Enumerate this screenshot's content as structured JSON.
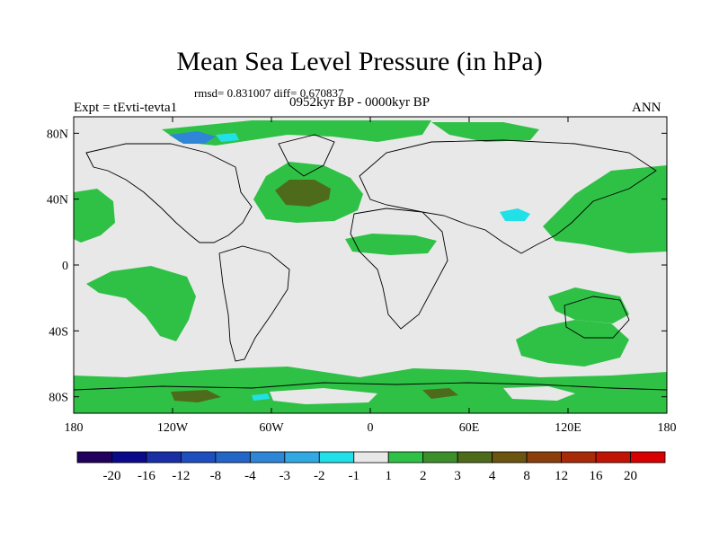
{
  "title": "Mean Sea Level Pressure (in hPa)",
  "stats": "rmsd= 0.831007 diff= 0.670837",
  "experiment": "Expt = tEvti-tevta1",
  "period": "0952kyr BP - 0000kyr BP",
  "season": "ANN",
  "x_ticks": [
    {
      "label": "180",
      "lon": -180
    },
    {
      "label": "120W",
      "lon": -120
    },
    {
      "label": "60W",
      "lon": -60
    },
    {
      "label": "0",
      "lon": 0
    },
    {
      "label": "60E",
      "lon": 60
    },
    {
      "label": "120E",
      "lon": 120
    },
    {
      "label": "180",
      "lon": 180
    }
  ],
  "y_ticks": [
    {
      "label": "80N",
      "lat": 80
    },
    {
      "label": "40N",
      "lat": 40
    },
    {
      "label": "0",
      "lat": 0
    },
    {
      "label": "40S",
      "lat": -40
    },
    {
      "label": "80S",
      "lat": -80
    }
  ],
  "colorbar": {
    "colors": [
      "#23005e",
      "#0a0a8a",
      "#1a2fa6",
      "#1f4fbf",
      "#2466c8",
      "#2f86d6",
      "#33a9e3",
      "#22e0e8",
      "#e8e8e8",
      "#2fc146",
      "#3d8f2a",
      "#4e6b1c",
      "#6b5510",
      "#8a3f0c",
      "#a82a08",
      "#c01505",
      "#d80000"
    ],
    "labels": [
      "-20",
      "-16",
      "-12",
      "-8",
      "-4",
      "-3",
      "-2",
      "-1",
      "1",
      "2",
      "3",
      "4",
      "8",
      "12",
      "16",
      "20"
    ]
  },
  "colors": {
    "ocean_background": "#e8e8e8",
    "level_1_2": "#2fc146",
    "level_3_4": "#4e6b1c",
    "level_neg_1_2": "#22e0e8",
    "level_neg_3_4": "#2f86d6",
    "coast": "#000000"
  }
}
